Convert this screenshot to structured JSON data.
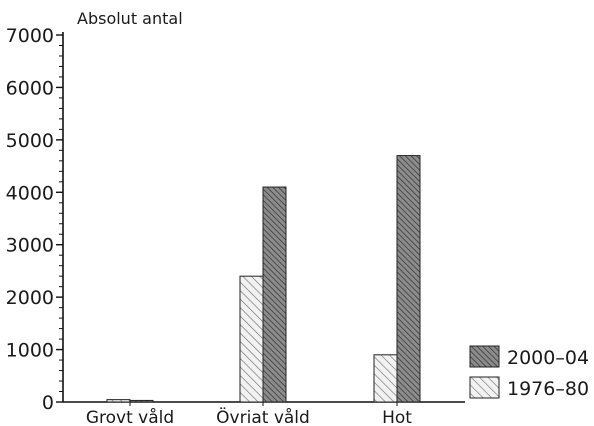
{
  "chart_data": {
    "type": "bar",
    "title": "",
    "ylabel": "Absolut antal",
    "xlabel": "",
    "categories": [
      "Grovt våld",
      "Övriat våld",
      "Hot"
    ],
    "series": [
      {
        "name": "1976–80",
        "values": [
          45,
          2400,
          900
        ],
        "color": "#d8d8d8",
        "pattern": "light-hatch"
      },
      {
        "name": "2000–04",
        "values": [
          30,
          4100,
          4700
        ],
        "color": "#7a7a7a",
        "pattern": "dark-hatch"
      }
    ],
    "ylim": [
      0,
      7000
    ],
    "yticks": [
      "0",
      "1000",
      "2000",
      "3000",
      "4000",
      "5000",
      "6000",
      "7000"
    ],
    "grid": false,
    "legend_position": "bottom-right",
    "legend_order": [
      "2000–04",
      "1976–80"
    ]
  }
}
